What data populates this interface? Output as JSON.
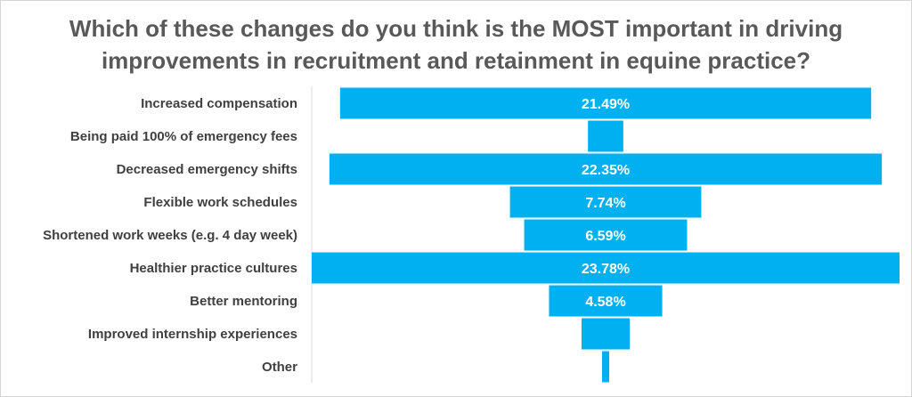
{
  "chart_data": {
    "type": "bar",
    "orientation": "horizontal-centered-funnel",
    "title": "Which of these changes do you think is the MOST important in driving improvements in recruitment and retainment in equine practice?",
    "title_lines": [
      "Which of these changes do you think is the MOST important in driving",
      "improvements in recruitment and retainment in equine practice?"
    ],
    "categories": [
      "Increased compensation",
      "Being paid 100% of emergency fees",
      "Decreased emergency shifts",
      "Flexible work schedules",
      "Shortened work weeks (e.g. 4 day week)",
      "Healthier practice cultures",
      "Better mentoring",
      "Improved internship experiences",
      "Other"
    ],
    "values": [
      21.49,
      1.43,
      22.35,
      7.74,
      6.59,
      23.78,
      4.58,
      1.95,
      0.29
    ],
    "data_labels": [
      "21.49%",
      "",
      "22.35%",
      "7.74%",
      "6.59%",
      "23.78%",
      "4.58%",
      "",
      ""
    ],
    "bar_color": "#00B0F0",
    "xlim": [
      0,
      23.78
    ],
    "xlabel": "",
    "ylabel": ""
  }
}
